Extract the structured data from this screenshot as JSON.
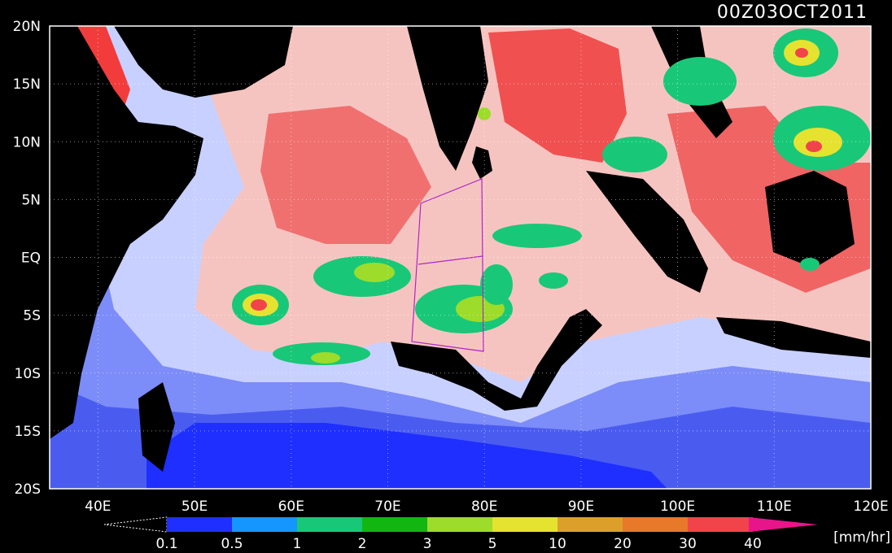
{
  "title": "00Z03OCT2011",
  "map": {
    "lon_range": [
      35,
      120
    ],
    "lat_range": [
      -20,
      20
    ],
    "lon_ticks": [
      "40E",
      "50E",
      "60E",
      "70E",
      "80E",
      "90E",
      "100E",
      "110E",
      "120E"
    ],
    "lat_ticks": [
      "20N",
      "15N",
      "10N",
      "5N",
      "EQ",
      "5S",
      "10S",
      "15S",
      "20S"
    ],
    "grid": "dotted",
    "land_color": "#000000"
  },
  "colorbar": {
    "unit": "[mm/hr]",
    "levels": [
      "0.1",
      "0.5",
      "1",
      "2",
      "3",
      "5",
      "10",
      "20",
      "30",
      "40"
    ],
    "colors": [
      "#1e2fff",
      "#1596ff",
      "#18c878",
      "#11b611",
      "#9ddc2a",
      "#e6e230",
      "#dca02a",
      "#e8782a",
      "#f0444a",
      "#e8148a"
    ]
  },
  "highlight_box": {
    "color": "#b026c8"
  }
}
